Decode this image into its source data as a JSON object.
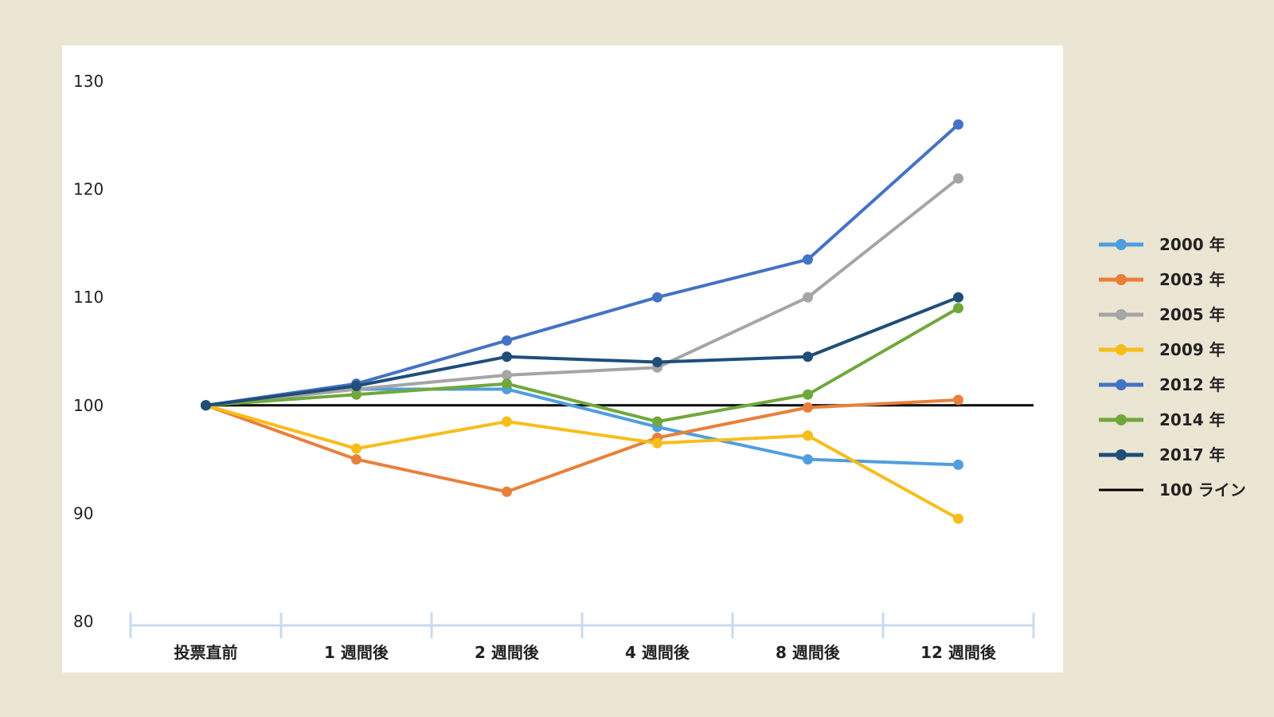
{
  "chart_data": {
    "type": "line",
    "title": "",
    "xlabel": "",
    "ylabel": "",
    "ylim": [
      80,
      130
    ],
    "yticks": [
      "80",
      "90",
      "100",
      "110",
      "120",
      "130"
    ],
    "grid": false,
    "legend_position": "right",
    "categories": [
      "投票直前",
      "1 週間後",
      "2 週間後",
      "4 週間後",
      "8 週間後",
      "12 週間後"
    ],
    "series": [
      {
        "name": "2000 年",
        "color": "#4f9edf",
        "values": [
          100,
          101.5,
          101.5,
          98.0,
          95.0,
          94.5
        ]
      },
      {
        "name": "2003 年",
        "color": "#e8803b",
        "values": [
          100,
          95.0,
          92.0,
          97.0,
          99.8,
          100.5
        ]
      },
      {
        "name": "2005 年",
        "color": "#a5a5a5",
        "values": [
          100,
          101.5,
          102.8,
          103.5,
          110.0,
          121.0
        ]
      },
      {
        "name": "2009 年",
        "color": "#f7bd1a",
        "values": [
          100,
          96.0,
          98.5,
          96.5,
          97.2,
          89.5
        ]
      },
      {
        "name": "2012 年",
        "color": "#4472c4",
        "values": [
          100,
          102.0,
          106.0,
          110.0,
          113.5,
          126.0
        ]
      },
      {
        "name": "2014 年",
        "color": "#70a83c",
        "values": [
          100,
          101.0,
          102.0,
          98.5,
          101.0,
          109.0
        ]
      },
      {
        "name": "2017 年",
        "color": "#1f4e79",
        "values": [
          100,
          101.8,
          104.5,
          104.0,
          104.5,
          110.0
        ]
      }
    ],
    "reference_line": {
      "name": "100 ライン",
      "value": 100,
      "color": "#000000"
    }
  }
}
